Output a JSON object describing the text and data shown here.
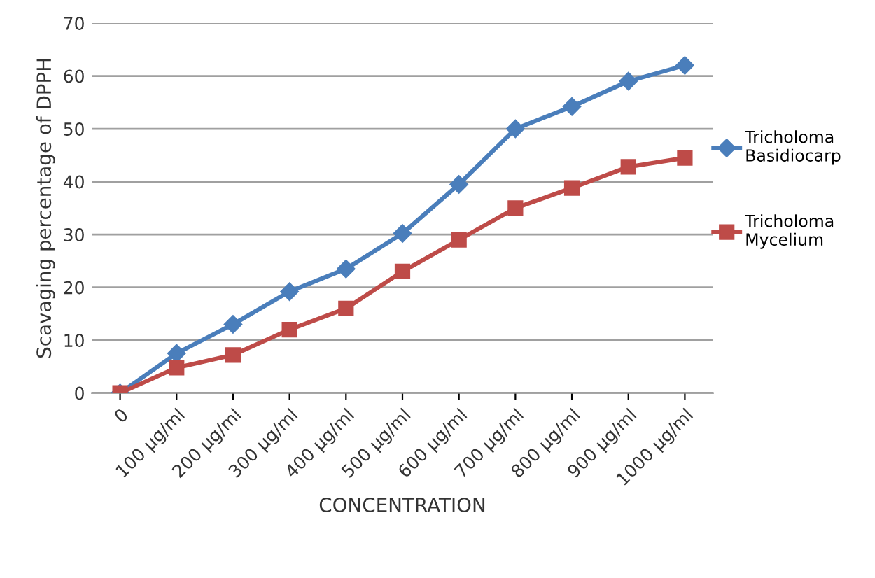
{
  "chart_data": {
    "type": "line",
    "xlabel": "CONCENTRATION",
    "ylabel": "Scavaging percentage of DPPH",
    "categories": [
      "0",
      "100 µg/ml",
      "200 µg/ml",
      "300 µg/ml",
      "400 µg/ml",
      "500 µg/ml",
      "600 µg/ml",
      "700 µg/ml",
      "800 µg/ml",
      "900 µg/ml",
      "1000 µg/ml"
    ],
    "series": [
      {
        "name": "Tricholoma Basidiocarp",
        "color": "#4a7ebb",
        "marker": "diamond",
        "values": [
          0,
          7.5,
          13,
          19.2,
          23.5,
          30.2,
          39.5,
          50,
          54.2,
          59,
          62
        ]
      },
      {
        "name": "Tricholoma Mycelium",
        "color": "#be4b48",
        "marker": "square",
        "values": [
          0,
          4.8,
          7.2,
          12,
          16,
          23,
          29,
          35,
          38.8,
          42.8,
          44.5
        ]
      }
    ],
    "ylim": [
      0,
      70
    ],
    "yticks": [
      0,
      10,
      20,
      30,
      40,
      50,
      60,
      70
    ],
    "grid": "y",
    "legend": "right"
  }
}
